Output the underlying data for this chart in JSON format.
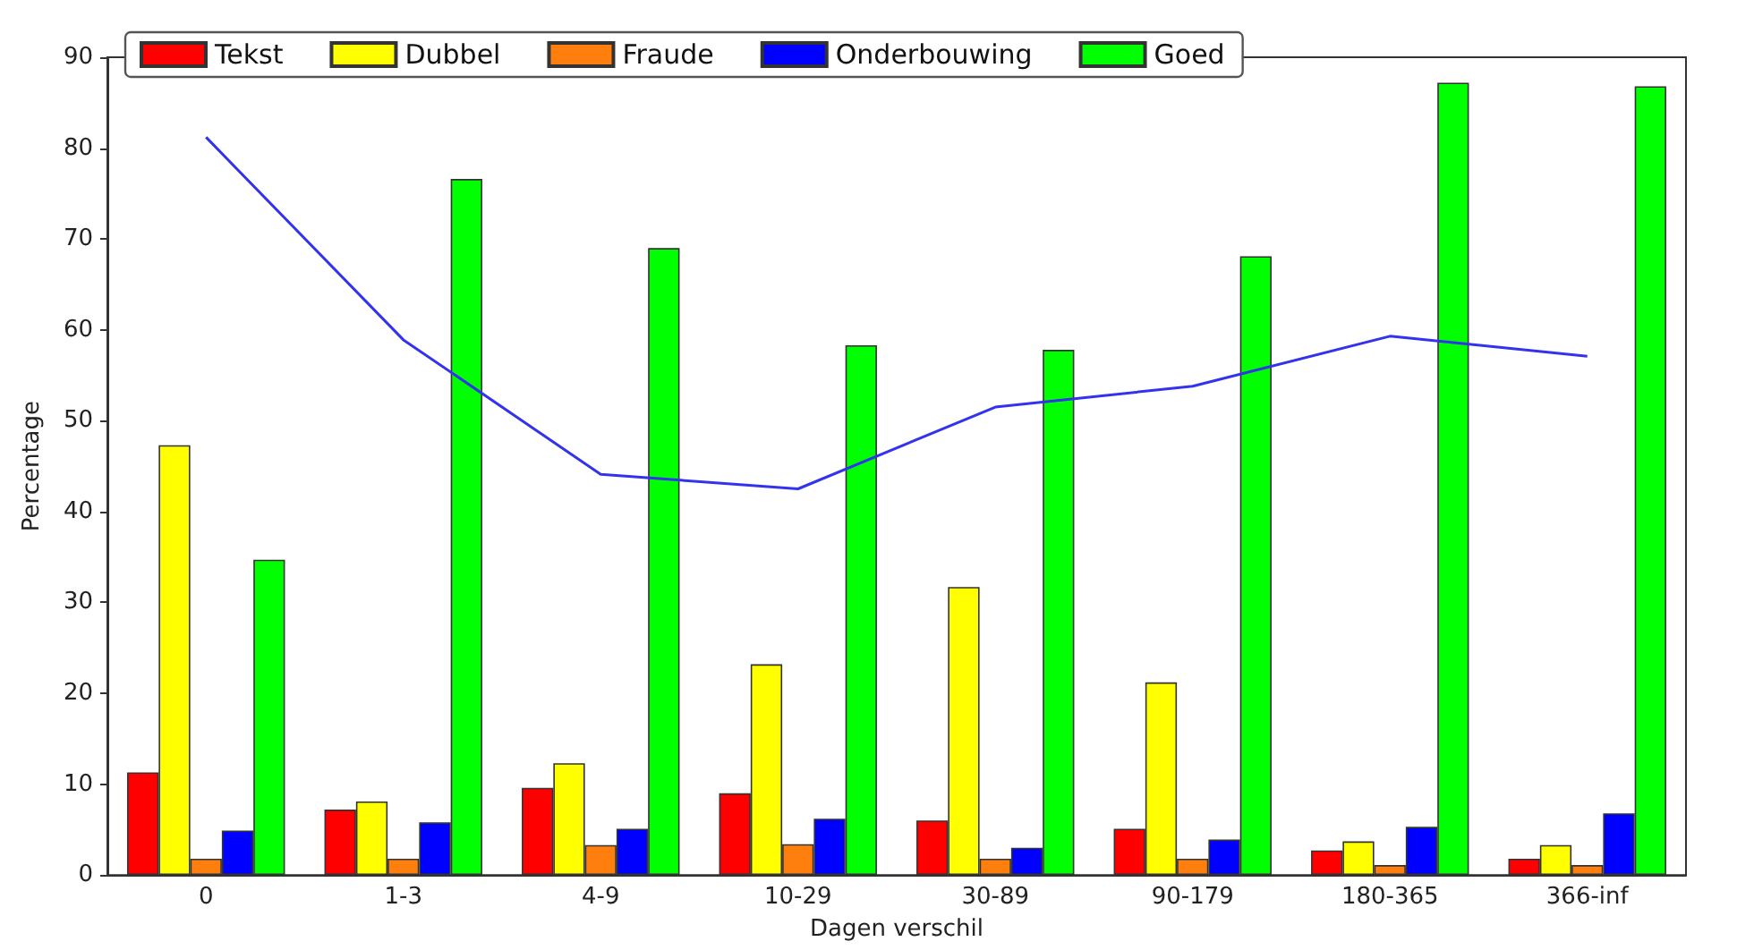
{
  "chart_data": {
    "type": "bar",
    "xlabel": "Dagen verschil",
    "ylabel": "Percentage",
    "categories": [
      "0",
      "1-3",
      "4-9",
      "10-29",
      "30-89",
      "90-179",
      "180-365",
      "366-inf"
    ],
    "series": [
      {
        "name": "Tekst",
        "color": "#ff0000",
        "values": [
          11.3,
          7.2,
          9.6,
          9.0,
          6.0,
          5.1,
          2.7,
          1.8
        ]
      },
      {
        "name": "Dubbel",
        "color": "#ffff00",
        "values": [
          47.3,
          8.1,
          12.3,
          23.2,
          31.7,
          21.2,
          3.7,
          3.3
        ]
      },
      {
        "name": "Fraude",
        "color": "#ff7f0e",
        "values": [
          1.8,
          1.8,
          3.3,
          3.4,
          1.8,
          1.8,
          1.1,
          1.1
        ]
      },
      {
        "name": "Onderbouwing",
        "color": "#0000ff",
        "values": [
          4.9,
          5.8,
          5.1,
          6.2,
          3.0,
          3.9,
          5.3,
          6.8
        ]
      },
      {
        "name": "Goed",
        "color": "#00ff00",
        "values": [
          34.7,
          76.6,
          69.0,
          58.3,
          57.8,
          68.1,
          87.2,
          86.8
        ]
      },
      {
        "type": "line",
        "color": "#3333ee",
        "marker": "none",
        "line_style": "solid",
        "values": [
          81.2,
          58.9,
          44.1,
          42.5,
          51.5,
          53.8,
          59.3,
          57.1
        ]
      }
    ],
    "ylim": [
      0,
      90
    ],
    "yticks": [
      0,
      10,
      20,
      30,
      40,
      50,
      60,
      70,
      80,
      90
    ],
    "grid": false,
    "legend": "top"
  }
}
